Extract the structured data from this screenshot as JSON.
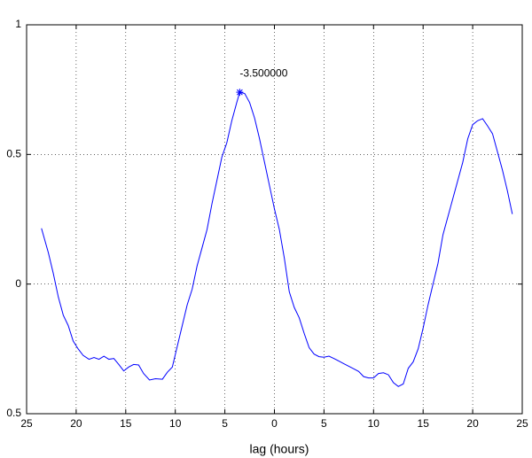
{
  "chart_data": {
    "type": "line",
    "xlabel": "lag (hours)",
    "x": [
      -23.5,
      -22.8,
      -22.3,
      -21.8,
      -21.3,
      -20.8,
      -20.3,
      -19.8,
      -19.3,
      -18.7,
      -18.2,
      -17.7,
      -17.2,
      -16.7,
      -16.2,
      -15.7,
      -15.2,
      -14.7,
      -14.2,
      -13.7,
      -13.2,
      -12.6,
      -12.0,
      -11.3,
      -10.8,
      -10.3,
      -9.8,
      -9.3,
      -8.8,
      -8.3,
      -7.8,
      -7.3,
      -6.8,
      -6.3,
      -5.8,
      -5.3,
      -4.8,
      -4.3,
      -3.8,
      -3.5,
      -3.0,
      -2.5,
      -2.0,
      -1.5,
      -1.0,
      -0.5,
      0.0,
      0.5,
      1.0,
      1.5,
      2.0,
      2.5,
      3.0,
      3.5,
      4.0,
      4.5,
      5.0,
      5.5,
      6.0,
      6.5,
      7.0,
      7.5,
      8.0,
      8.5,
      9.0,
      9.5,
      10.0,
      10.5,
      11.0,
      11.5,
      12.0,
      12.5,
      13.0,
      13.5,
      14.0,
      14.5,
      15.0,
      15.5,
      16.0,
      16.5,
      17.0,
      17.5,
      18.0,
      18.5,
      19.0,
      19.5,
      20.0,
      20.5,
      21.0,
      21.5,
      22.0,
      22.5,
      23.0,
      23.5,
      24.0
    ],
    "series": [
      {
        "color": "#0000ff",
        "values": [
          0.215,
          0.12,
          0.04,
          -0.05,
          -0.12,
          -0.16,
          -0.22,
          -0.25,
          -0.275,
          -0.29,
          -0.283,
          -0.29,
          -0.278,
          -0.29,
          -0.287,
          -0.31,
          -0.335,
          -0.32,
          -0.31,
          -0.312,
          -0.345,
          -0.37,
          -0.365,
          -0.367,
          -0.34,
          -0.32,
          -0.24,
          -0.16,
          -0.08,
          -0.02,
          0.07,
          0.14,
          0.21,
          0.31,
          0.4,
          0.49,
          0.545,
          0.63,
          0.7,
          0.74,
          0.735,
          0.7,
          0.64,
          0.56,
          0.47,
          0.38,
          0.29,
          0.21,
          0.1,
          -0.03,
          -0.09,
          -0.13,
          -0.19,
          -0.245,
          -0.27,
          -0.28,
          -0.282,
          -0.278,
          -0.287,
          -0.297,
          -0.307,
          -0.317,
          -0.327,
          -0.337,
          -0.357,
          -0.362,
          -0.362,
          -0.345,
          -0.342,
          -0.35,
          -0.38,
          -0.395,
          -0.385,
          -0.325,
          -0.3,
          -0.25,
          -0.17,
          -0.08,
          0.0,
          0.08,
          0.19,
          0.26,
          0.33,
          0.4,
          0.47,
          0.56,
          0.615,
          0.63,
          0.638,
          0.61,
          0.58,
          0.51,
          0.44,
          0.36,
          0.27
        ]
      }
    ],
    "annotations": [
      {
        "text": "-3.500000",
        "x": -3.5,
        "y": 0.74
      }
    ],
    "xlim": [
      -25,
      25
    ],
    "xticks": [
      {
        "value": -25,
        "label": "25"
      },
      {
        "value": -20,
        "label": "20"
      },
      {
        "value": -15,
        "label": "15"
      },
      {
        "value": -10,
        "label": "10"
      },
      {
        "value": -5,
        "label": "5"
      },
      0,
      5,
      10,
      15,
      20,
      25
    ],
    "ylim": [
      -0.5,
      1
    ],
    "yticks": [
      {
        "value": -0.5,
        "label": "0.5"
      },
      0,
      0.5,
      1
    ],
    "grid": true
  }
}
